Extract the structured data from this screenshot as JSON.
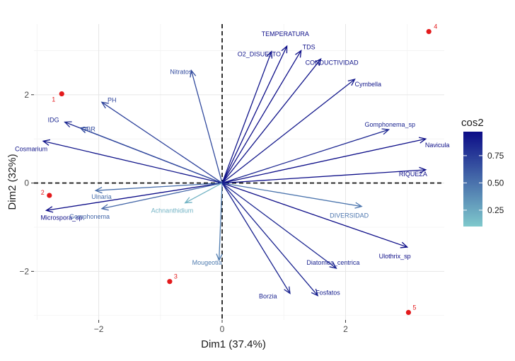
{
  "chart_data": {
    "type": "scatter",
    "subtype": "pca-biplot",
    "title": "",
    "xlabel": "Dim1 (37.4%)",
    "ylabel": "Dim2 (32%)",
    "xlim": [
      -3.05,
      3.6
    ],
    "ylim": [
      -3.1,
      3.6
    ],
    "x_ticks": [
      -2,
      0,
      2
    ],
    "y_ticks": [
      -2,
      0,
      2
    ],
    "x_tick_labels": [
      "−2",
      "0",
      "2"
    ],
    "y_tick_labels": [
      "−2",
      "0",
      "2"
    ],
    "grid": true,
    "reference_lines": {
      "x": 0,
      "y": 0,
      "style": "dashed"
    },
    "points": [
      {
        "label": "1",
        "x": -2.6,
        "y": 2.02,
        "color": "#e31a1c"
      },
      {
        "label": "2",
        "x": -2.8,
        "y": -0.28,
        "color": "#e31a1c"
      },
      {
        "label": "3",
        "x": -0.85,
        "y": -2.23,
        "color": "#e31a1c"
      },
      {
        "label": "4",
        "x": 3.35,
        "y": 3.43,
        "color": "#e31a1c"
      },
      {
        "label": "5",
        "x": 3.02,
        "y": -2.93,
        "color": "#e31a1c"
      }
    ],
    "arrows": [
      {
        "label": "TEMPERATURA",
        "x": 1.05,
        "y": 3.1,
        "cos2": 0.96
      },
      {
        "label": "TDS",
        "x": 1.28,
        "y": 3.0,
        "cos2": 0.95
      },
      {
        "label": "O2_DISUELTO",
        "x": 0.8,
        "y": 2.98,
        "cos2": 0.93
      },
      {
        "label": "CONDUCTIVIDAD",
        "x": 1.6,
        "y": 2.81,
        "cos2": 0.93
      },
      {
        "label": "Nitratos",
        "x": -0.5,
        "y": 2.55,
        "cos2": 0.68
      },
      {
        "label": "Cymbella",
        "x": 2.15,
        "y": 2.35,
        "cos2": 0.91
      },
      {
        "label": "PH",
        "x": -1.95,
        "y": 1.83,
        "cos2": 0.72
      },
      {
        "label": "IDG",
        "x": -2.55,
        "y": 1.38,
        "cos2": 0.84
      },
      {
        "label": "QBR",
        "x": -2.3,
        "y": 1.25,
        "cos2": 0.68
      },
      {
        "label": "Gomphonema_sp",
        "x": 2.7,
        "y": 1.21,
        "cos2": 0.85
      },
      {
        "label": "Cosmarium",
        "x": -2.9,
        "y": 0.95,
        "cos2": 0.93
      },
      {
        "label": "Navicula",
        "x": 3.3,
        "y": 1.0,
        "cos2": 0.96
      },
      {
        "label": "RIQUEZA",
        "x": 3.3,
        "y": 0.3,
        "cos2": 0.96
      },
      {
        "label": "Ulnaria",
        "x": -2.05,
        "y": -0.17,
        "cos2": 0.52
      },
      {
        "label": "Microspora_sp",
        "x": -2.85,
        "y": -0.62,
        "cos2": 0.97
      },
      {
        "label": "Gomphonema",
        "x": -1.95,
        "y": -0.58,
        "cos2": 0.55
      },
      {
        "label": "Achnanthidium",
        "x": -0.6,
        "y": -0.45,
        "cos2": 0.2
      },
      {
        "label": "DIVERSIDAD",
        "x": 2.26,
        "y": -0.53,
        "cos2": 0.48
      },
      {
        "label": "Mougeotia",
        "x": -0.05,
        "y": -1.75,
        "cos2": 0.45
      },
      {
        "label": "Ulothrix_sp",
        "x": 3.0,
        "y": -1.45,
        "cos2": 0.97
      },
      {
        "label": "Diatomea_centrica",
        "x": 1.85,
        "y": -1.93,
        "cos2": 0.85
      },
      {
        "label": "Fosfatos",
        "x": 1.55,
        "y": -2.55,
        "cos2": 0.87
      },
      {
        "label": "Borzia",
        "x": 1.1,
        "y": -2.5,
        "cos2": 0.87
      }
    ],
    "legend": {
      "title": "cos2",
      "position": "right",
      "color_low": "#7fc9cc",
      "color_high": "#0c0c87",
      "range": [
        0.1,
        0.97
      ],
      "ticks": [
        0.25,
        0.5,
        0.75
      ],
      "tick_labels": [
        "0.25",
        "0.50",
        "0.75"
      ]
    }
  }
}
